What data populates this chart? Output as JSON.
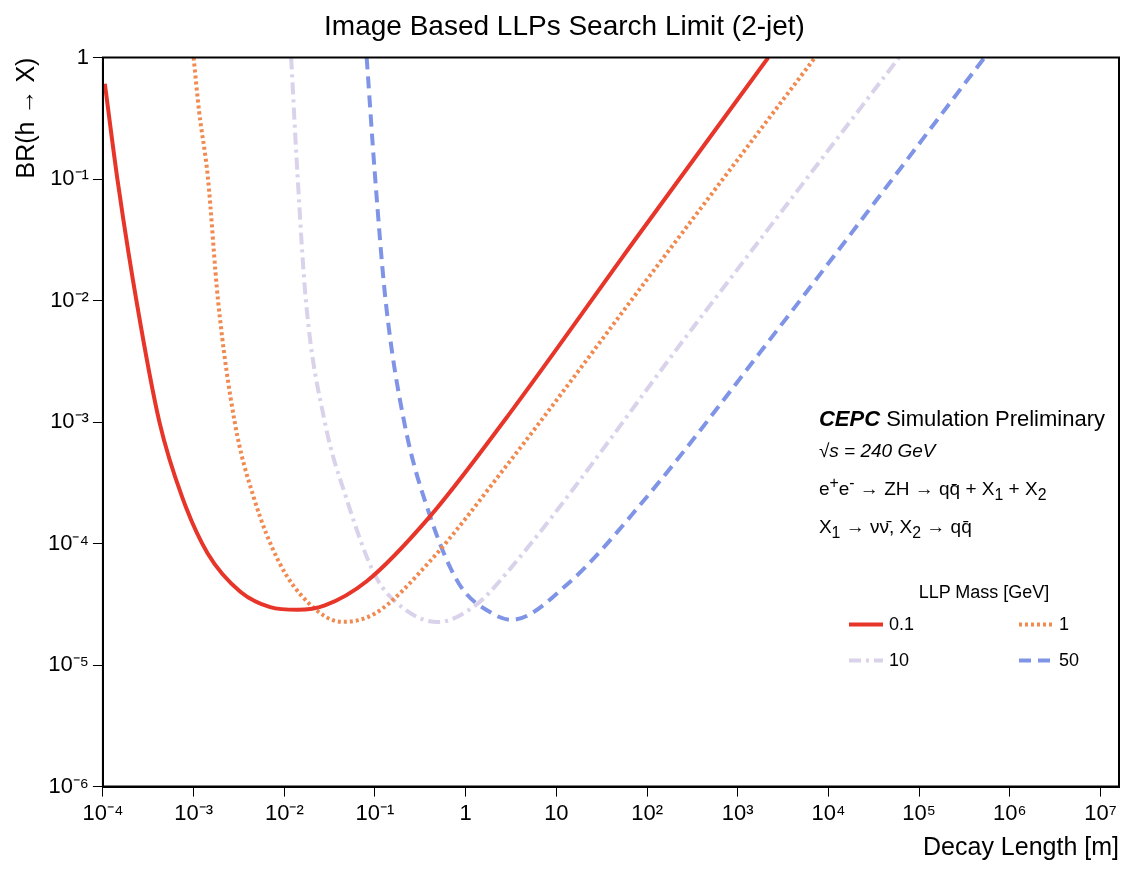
{
  "chart_data": {
    "type": "line",
    "title": "Image Based LLPs Search Limit (2-jet)",
    "xlabel": "Decay Length [m]",
    "ylabel": "BR(h → X)",
    "log": "xy",
    "grid": false,
    "legend": "bottom right",
    "legend_title": "LLP Mass [GeV]",
    "marker": "none",
    "xlim": [
      0.0001,
      16000000
    ],
    "ylim": [
      1e-06,
      1
    ],
    "xticks": [
      {
        "value": 0.0001,
        "label": "10⁻⁴"
      },
      {
        "value": 0.001,
        "label": "10⁻³"
      },
      {
        "value": 0.01,
        "label": "10⁻²"
      },
      {
        "value": 0.1,
        "label": "10⁻¹"
      },
      1,
      10,
      {
        "value": 100,
        "label": "10²"
      },
      {
        "value": 1000,
        "label": "10³"
      },
      {
        "value": 10000,
        "label": "10⁴"
      },
      {
        "value": 100000,
        "label": "10⁵"
      },
      {
        "value": 1000000,
        "label": "10⁶"
      },
      {
        "value": 10000000,
        "label": "10⁷"
      }
    ],
    "yticks": [
      {
        "value": 1e-06,
        "label": "10⁻⁶"
      },
      {
        "value": 1e-05,
        "label": "10⁻⁵"
      },
      {
        "value": 0.0001,
        "label": "10⁻⁴"
      },
      {
        "value": 0.001,
        "label": "10⁻³"
      },
      {
        "value": 0.01,
        "label": "10⁻²"
      },
      {
        "value": 0.1,
        "label": "10⁻¹"
      },
      1
    ],
    "annotations": [
      "CEPC Simulation Preliminary",
      "√s = 240 GeV",
      "e$^{+}$e$^{-}$ → ZH → qq̄ + X$_{1}$ + X$_{2}$",
      "X$_{1}$ → νν̄, X$_{2}$ → qq̄"
    ],
    "series": [
      {
        "name": "0.1",
        "color": "#e8352a",
        "line_style": "solid",
        "x": [
          0.000105,
          0.000145,
          0.000234,
          0.00042,
          0.00075,
          0.00143,
          0.0033,
          0.007,
          0.014,
          0.028,
          0.081,
          0.4,
          2.7,
          79,
          2170
        ],
        "values": [
          0.61,
          0.098,
          0.01,
          0.001,
          0.00024,
          8.3e-05,
          4e-05,
          3e-05,
          2.85e-05,
          3.1e-05,
          4.9e-05,
          0.000166,
          0.00104,
          0.034,
          1
        ]
      },
      {
        "name": "1",
        "color": "#f08a50",
        "line_style": "dotted",
        "x": [
          0.001,
          0.00115,
          0.00143,
          0.00186,
          0.00284,
          0.0046,
          0.0087,
          0.0183,
          0.043,
          0.1,
          0.4,
          2.7,
          126,
          7100
        ],
        "values": [
          1,
          0.36,
          0.107,
          0.01,
          0.001,
          0.00024,
          7.1e-05,
          3.27e-05,
          2.27e-05,
          2.66e-05,
          7.1e-05,
          0.00042,
          0.0188,
          1
        ]
      },
      {
        "name": "10",
        "color": "#d9d2ea",
        "line_style": "dashdot",
        "x": [
          0.0119,
          0.014,
          0.0173,
          0.028,
          0.048,
          0.1,
          0.21,
          0.49,
          1.28,
          2.7,
          316,
          60000
        ],
        "values": [
          1,
          0.107,
          0.01,
          0.001,
          0.00024,
          5.5e-05,
          2.9e-05,
          2.26e-05,
          3.1e-05,
          5.5e-05,
          0.0059,
          1
        ]
      },
      {
        "name": "50",
        "color": "#7f94e6",
        "line_style": "dashed",
        "x": [
          0.081,
          0.1,
          0.131,
          0.21,
          0.4,
          0.84,
          1.97,
          3.2,
          13.5,
          82,
          2740,
          525000
        ],
        "values": [
          1,
          0.107,
          0.01,
          0.001,
          0.000173,
          4.7e-05,
          2.66e-05,
          2.36e-05,
          4.7e-05,
          0.000204,
          0.00575,
          1
        ]
      }
    ]
  }
}
